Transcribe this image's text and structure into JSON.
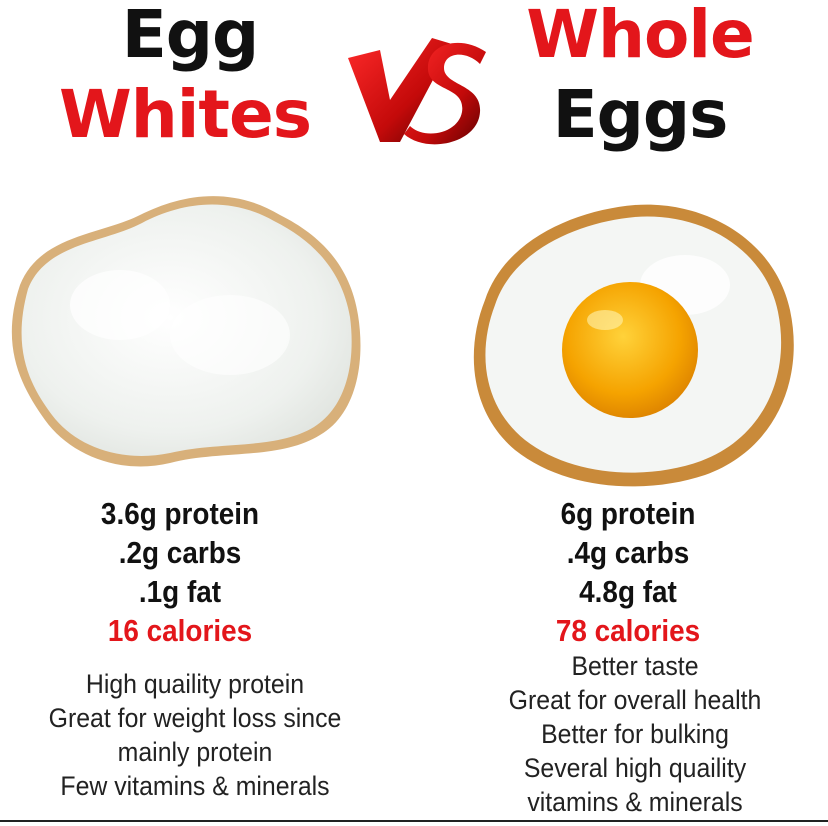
{
  "left": {
    "title_line1": "Egg",
    "title_line2": "Whites",
    "macros": {
      "protein": "3.6g protein",
      "carbs": ".2g carbs",
      "fat": ".1g fat",
      "calories": "16 calories"
    },
    "notes": [
      "High quaility protein",
      "Great for weight loss since",
      "mainly protein",
      "Few vitamins & minerals"
    ]
  },
  "center": {
    "vs_label": "VS"
  },
  "right": {
    "title_line1": "Whole",
    "title_line2": "Eggs",
    "macros": {
      "protein": "6g protein",
      "carbs": ".4g carbs",
      "fat": "4.8g fat",
      "calories": "78 calories"
    },
    "notes": [
      "Better taste",
      "Great for overall health",
      "Better for bulking",
      "Several high quaility",
      "vitamins & minerals"
    ]
  },
  "colors": {
    "accent_red": "#e3161b",
    "text_black": "#111111",
    "yolk": "#f5a300",
    "egg_white": "#f4f6f4",
    "fried_edge": "#c98a3a"
  }
}
